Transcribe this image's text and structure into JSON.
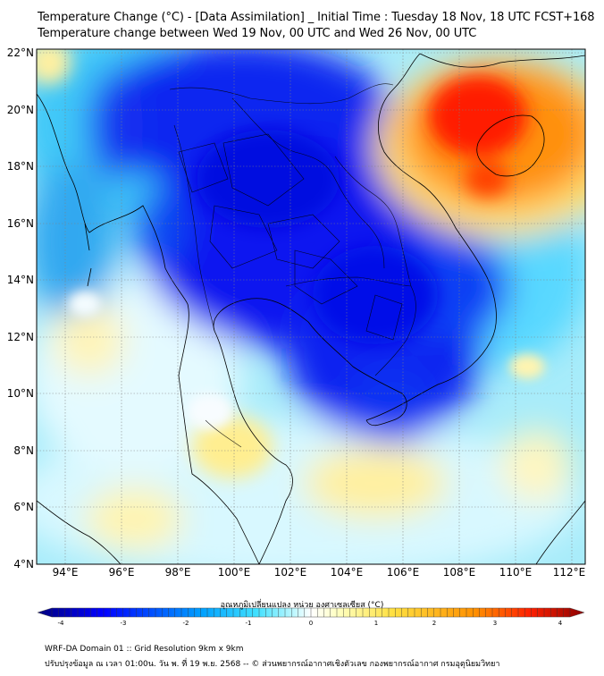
{
  "title": {
    "line1": "Temperature Change (°C) - [Data Assimilation] _ Initial Time : Tuesday 18 Nov, 18 UTC FCST+168",
    "line2": "Temperature change between Wed 19 Nov, 00 UTC and Wed 26 Nov, 00 UTC"
  },
  "axes": {
    "lat_labels": [
      "22°N",
      "20°N",
      "18°N",
      "16°N",
      "14°N",
      "12°N",
      "10°N",
      "8°N",
      "6°N",
      "4°N"
    ],
    "lon_labels": [
      "94°E",
      "96°E",
      "98°E",
      "100°E",
      "102°E",
      "104°E",
      "106°E",
      "108°E",
      "110°E",
      "112°E"
    ]
  },
  "colorbar": {
    "title": "อุณหภูมิเปลี่ยนแปลง หน่วย องศาเซลเซียส (°C)",
    "tick_labels": [
      "-4",
      "-3",
      "-2",
      "-1",
      "0",
      "1",
      "2",
      "3",
      "4"
    ],
    "range": [
      -4,
      4
    ],
    "colors": [
      "#00007f",
      "#0000ff",
      "#00a0ff",
      "#40e0ff",
      "#c0f8ff",
      "#ffffff",
      "#ffffa0",
      "#ffe040",
      "#ff9000",
      "#ff2000",
      "#8b0000"
    ]
  },
  "footer": {
    "line1": "WRF-DA Domain 01 :: Grid Resolution 9km x 9km",
    "line2": "ปรับปรุงข้อมูล ณ เวลา 01:00น. วัน พ. ที่ 19 พ.ย. 2568 -- © ส่วนพยากรณ์อากาศเชิงตัวเลข กองพยากรณ์อากาศ กรมอุตุนิยมวิทยา"
  }
}
